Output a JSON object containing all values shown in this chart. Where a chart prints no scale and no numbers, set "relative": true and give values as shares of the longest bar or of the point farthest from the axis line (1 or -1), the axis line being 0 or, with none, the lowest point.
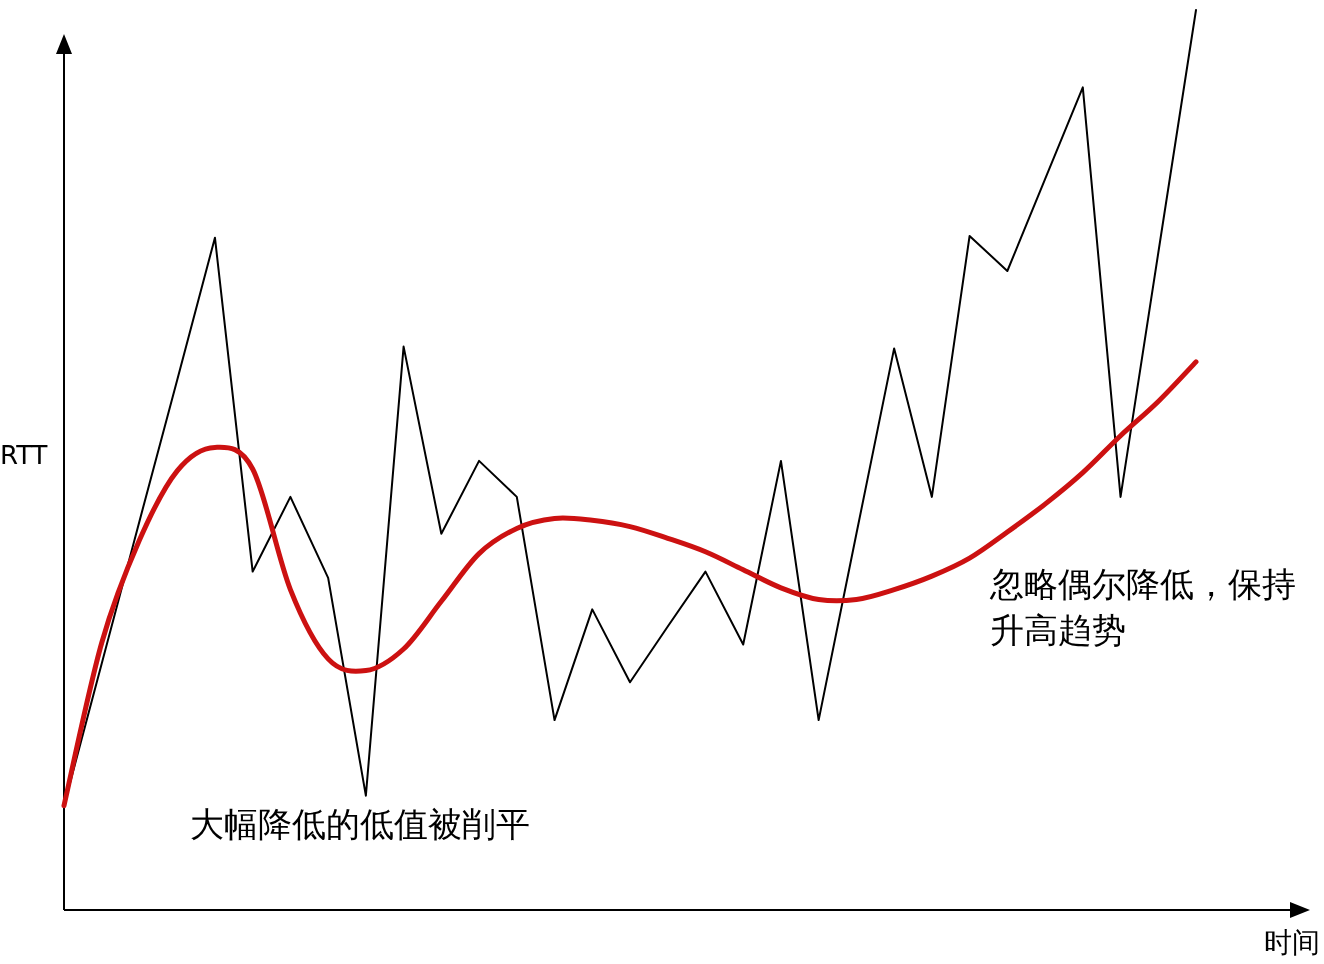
{
  "chart_data": {
    "type": "line",
    "relative": true,
    "xlabel": "时间",
    "ylabel": "RTT",
    "annotations": [
      "大幅降低的低值被削平",
      "忽略偶尔降低，保持升高趋势"
    ],
    "categories": [
      null,
      null,
      null,
      null,
      null,
      null,
      null,
      null,
      null,
      null,
      null,
      null,
      null,
      null,
      null,
      null,
      null,
      null,
      null,
      null,
      null,
      null,
      null,
      null,
      null,
      null,
      null,
      null,
      null,
      null,
      null
    ],
    "series": [
      {
        "color": "#000000",
        "values": [
          0.116,
          0.274,
          0.432,
          0.589,
          0.747,
          0.376,
          0.459,
          0.369,
          0.127,
          0.626,
          0.418,
          0.499,
          0.459,
          0.211,
          0.334,
          0.253,
          0.315,
          0.376,
          0.295,
          0.499,
          0.211,
          0.418,
          0.624,
          0.459,
          0.749,
          0.71,
          0.812,
          0.914,
          0.459,
          0.73,
          1
        ]
      },
      {
        "color": "#cc1111",
        "values": [
          0.116,
          0.297,
          0.411,
          0.488,
          0.514,
          0.49,
          0.356,
          0.279,
          0.266,
          0.29,
          0.343,
          0.396,
          0.424,
          0.435,
          0.433,
          0.426,
          0.413,
          0.398,
          0.378,
          0.358,
          0.345,
          0.345,
          0.356,
          0.371,
          0.391,
          0.42,
          0.451,
          0.486,
          0.527,
          0.565,
          0.609
        ]
      }
    ]
  }
}
